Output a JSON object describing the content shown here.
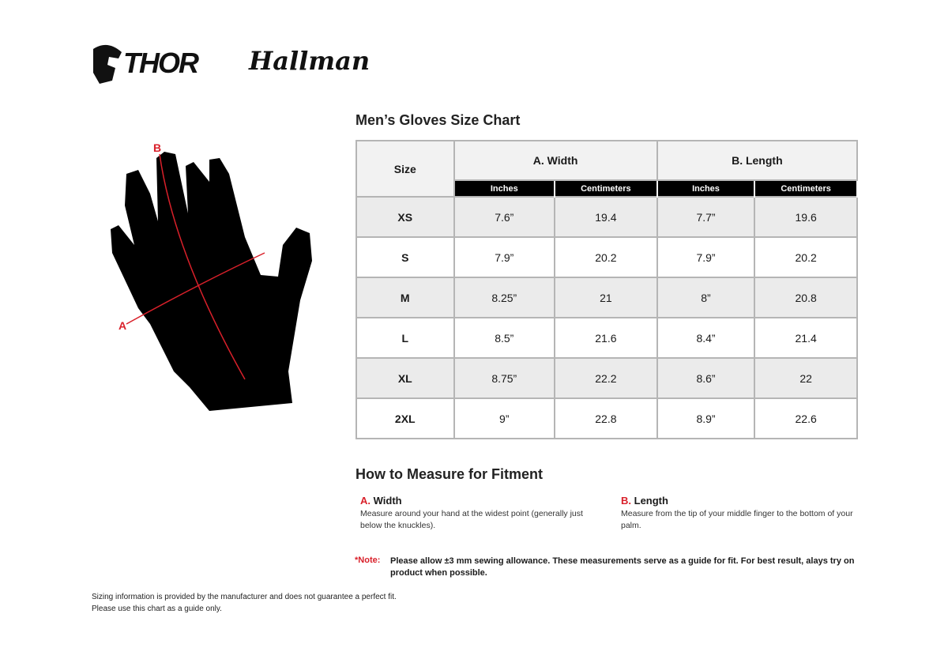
{
  "logos": {
    "thor": "THOR",
    "hallman": "Hallman"
  },
  "hand": {
    "label_a": "A",
    "label_b": "B"
  },
  "chart": {
    "title": "Men’s Gloves Size Chart",
    "size_header": "Size",
    "group_headers": [
      "A. Width",
      "B. Length"
    ],
    "sub_headers": [
      "Inches",
      "Centimeters",
      "Inches",
      "Centimeters"
    ],
    "rows": [
      {
        "size": "XS",
        "cells": [
          "7.6”",
          "19.4",
          "7.7”",
          "19.6"
        ]
      },
      {
        "size": "S",
        "cells": [
          "7.9”",
          "20.2",
          "7.9”",
          "20.2"
        ]
      },
      {
        "size": "M",
        "cells": [
          "8.25”",
          "21",
          "8”",
          "20.8"
        ]
      },
      {
        "size": "L",
        "cells": [
          "8.5”",
          "21.6",
          "8.4”",
          "21.4"
        ]
      },
      {
        "size": "XL",
        "cells": [
          "8.75”",
          "22.2",
          "8.6”",
          "22"
        ]
      },
      {
        "size": "2XL",
        "cells": [
          "9”",
          "22.8",
          "8.9”",
          "22.6"
        ]
      }
    ]
  },
  "measure": {
    "title": "How to Measure for Fitment",
    "a": {
      "letter": "A.",
      "label": "Width",
      "text": "Measure around your hand at the widest point (generally just below the knuckles)."
    },
    "b": {
      "letter": "B.",
      "label": "Length",
      "text": "Measure from the tip of your middle finger to the bottom of your palm."
    }
  },
  "note": {
    "label": "*Note:",
    "text": "Please allow ±3 mm sewing allowance. These measurements serve as a guide for fit. For best result, alays try on product when possible."
  },
  "disclaimer": [
    "Sizing information is provided by the manufacturer and does not guarantee a perfect fit.",
    "Please use this chart as a guide only."
  ],
  "colors": {
    "accent": "#d9202a",
    "header_bg": "#f2f2f2",
    "alt_row": "#ebebeb",
    "border": "#b5b5b5"
  }
}
